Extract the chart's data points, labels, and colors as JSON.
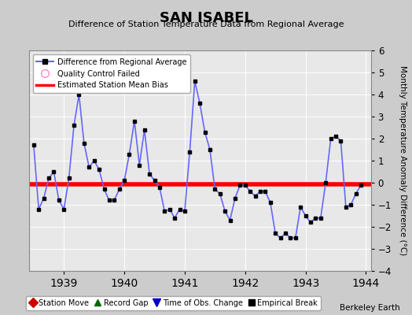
{
  "title": "SAN ISABEL",
  "subtitle": "Difference of Station Temperature Data from Regional Average",
  "ylabel": "Monthly Temperature Anomaly Difference (°C)",
  "bias_value": -0.07,
  "ylim": [
    -4,
    6
  ],
  "yticks": [
    -4,
    -3,
    -2,
    -1,
    0,
    1,
    2,
    3,
    4,
    5,
    6
  ],
  "line_color": "#6666ff",
  "marker_color": "#000000",
  "bias_color": "#ff0000",
  "bg_color": "#cccccc",
  "plot_bg_color": "#e8e8e8",
  "xlabel_years": [
    1939,
    1940,
    1941,
    1942,
    1943,
    1944
  ],
  "times": [
    1938.5,
    1938.583,
    1938.667,
    1938.75,
    1938.833,
    1938.917,
    1939.0,
    1939.083,
    1939.167,
    1939.25,
    1939.333,
    1939.417,
    1939.5,
    1939.583,
    1939.667,
    1939.75,
    1939.833,
    1939.917,
    1940.0,
    1940.083,
    1940.167,
    1940.25,
    1940.333,
    1940.417,
    1940.5,
    1940.583,
    1940.667,
    1940.75,
    1940.833,
    1940.917,
    1941.0,
    1941.083,
    1941.167,
    1941.25,
    1941.333,
    1941.417,
    1941.5,
    1941.583,
    1941.667,
    1941.75,
    1941.833,
    1941.917,
    1942.0,
    1942.083,
    1942.167,
    1942.25,
    1942.333,
    1942.417,
    1942.5,
    1942.583,
    1942.667,
    1942.75,
    1942.833,
    1942.917,
    1943.0,
    1943.083,
    1943.167,
    1943.25,
    1943.333,
    1943.417,
    1943.5,
    1943.583,
    1943.667,
    1943.75,
    1943.833,
    1943.917
  ],
  "values": [
    1.7,
    -1.2,
    -0.7,
    0.2,
    0.5,
    -0.8,
    -1.2,
    0.2,
    2.6,
    4.0,
    1.8,
    0.7,
    1.0,
    0.6,
    -0.3,
    -0.8,
    -0.8,
    -0.3,
    0.1,
    1.3,
    2.8,
    0.8,
    2.4,
    0.4,
    0.1,
    -0.2,
    -1.3,
    -1.2,
    -1.6,
    -1.2,
    -1.3,
    1.4,
    4.6,
    3.6,
    2.3,
    1.5,
    -0.3,
    -0.5,
    -1.3,
    -1.7,
    -0.7,
    -0.1,
    -0.1,
    -0.4,
    -0.6,
    -0.4,
    -0.4,
    -0.9,
    -2.3,
    -2.5,
    -2.3,
    -2.5,
    -2.5,
    -1.1,
    -1.5,
    -1.8,
    -1.6,
    -1.6,
    0.0,
    2.0,
    2.1,
    1.9,
    -1.1,
    -1.0,
    -0.5,
    -0.1
  ],
  "xlim": [
    1938.42,
    1944.08
  ]
}
